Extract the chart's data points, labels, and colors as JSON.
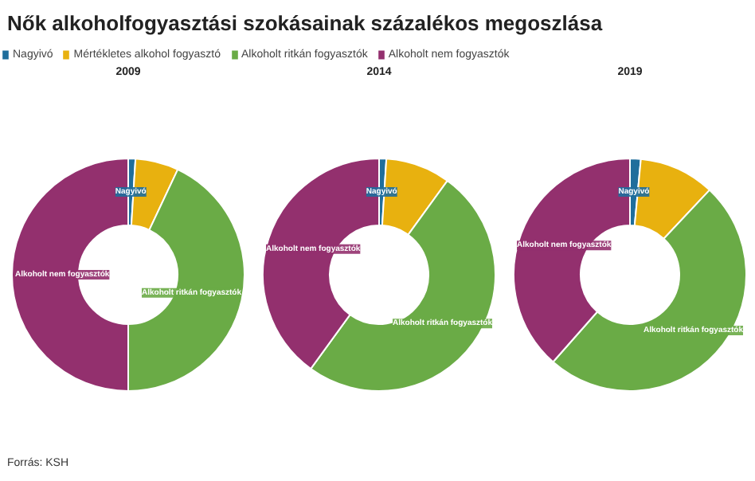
{
  "chart_data": {
    "type": "donut",
    "title": "Nők alkoholfogyasztási szokásainak százalékos megoszlása",
    "legend": "top left",
    "annotations": [
      "Forrás: KSH"
    ],
    "categories": [
      "Nagyivó",
      "Mértékletes alkohol fogyasztó",
      "Alkoholt ritkán fogyasztók",
      "Alkoholt nem fogyasztók"
    ],
    "colors": [
      "#1f6e9c",
      "#e8b10f",
      "#6aab46",
      "#93306e"
    ],
    "series": [
      {
        "name": "2009",
        "values": [
          1,
          6,
          43,
          50
        ],
        "value_labels": [
          "Nagyivó",
          null,
          "Alkoholt ritkán fogyasztók",
          "Alkoholt nem fogyasztók"
        ]
      },
      {
        "name": "2014",
        "values": [
          1,
          9,
          50,
          40
        ],
        "value_labels": [
          "Nagyivó",
          null,
          "Alkoholt ritkán fogyasztók",
          "Alkoholt nem fogyasztók"
        ]
      },
      {
        "name": "2019",
        "values": [
          1.5,
          10.5,
          49.5,
          38.5
        ],
        "value_labels": [
          "Nagyivó",
          null,
          "Alkoholt ritkán fogyasztók",
          "Alkoholt nem fogyasztók"
        ]
      }
    ]
  }
}
